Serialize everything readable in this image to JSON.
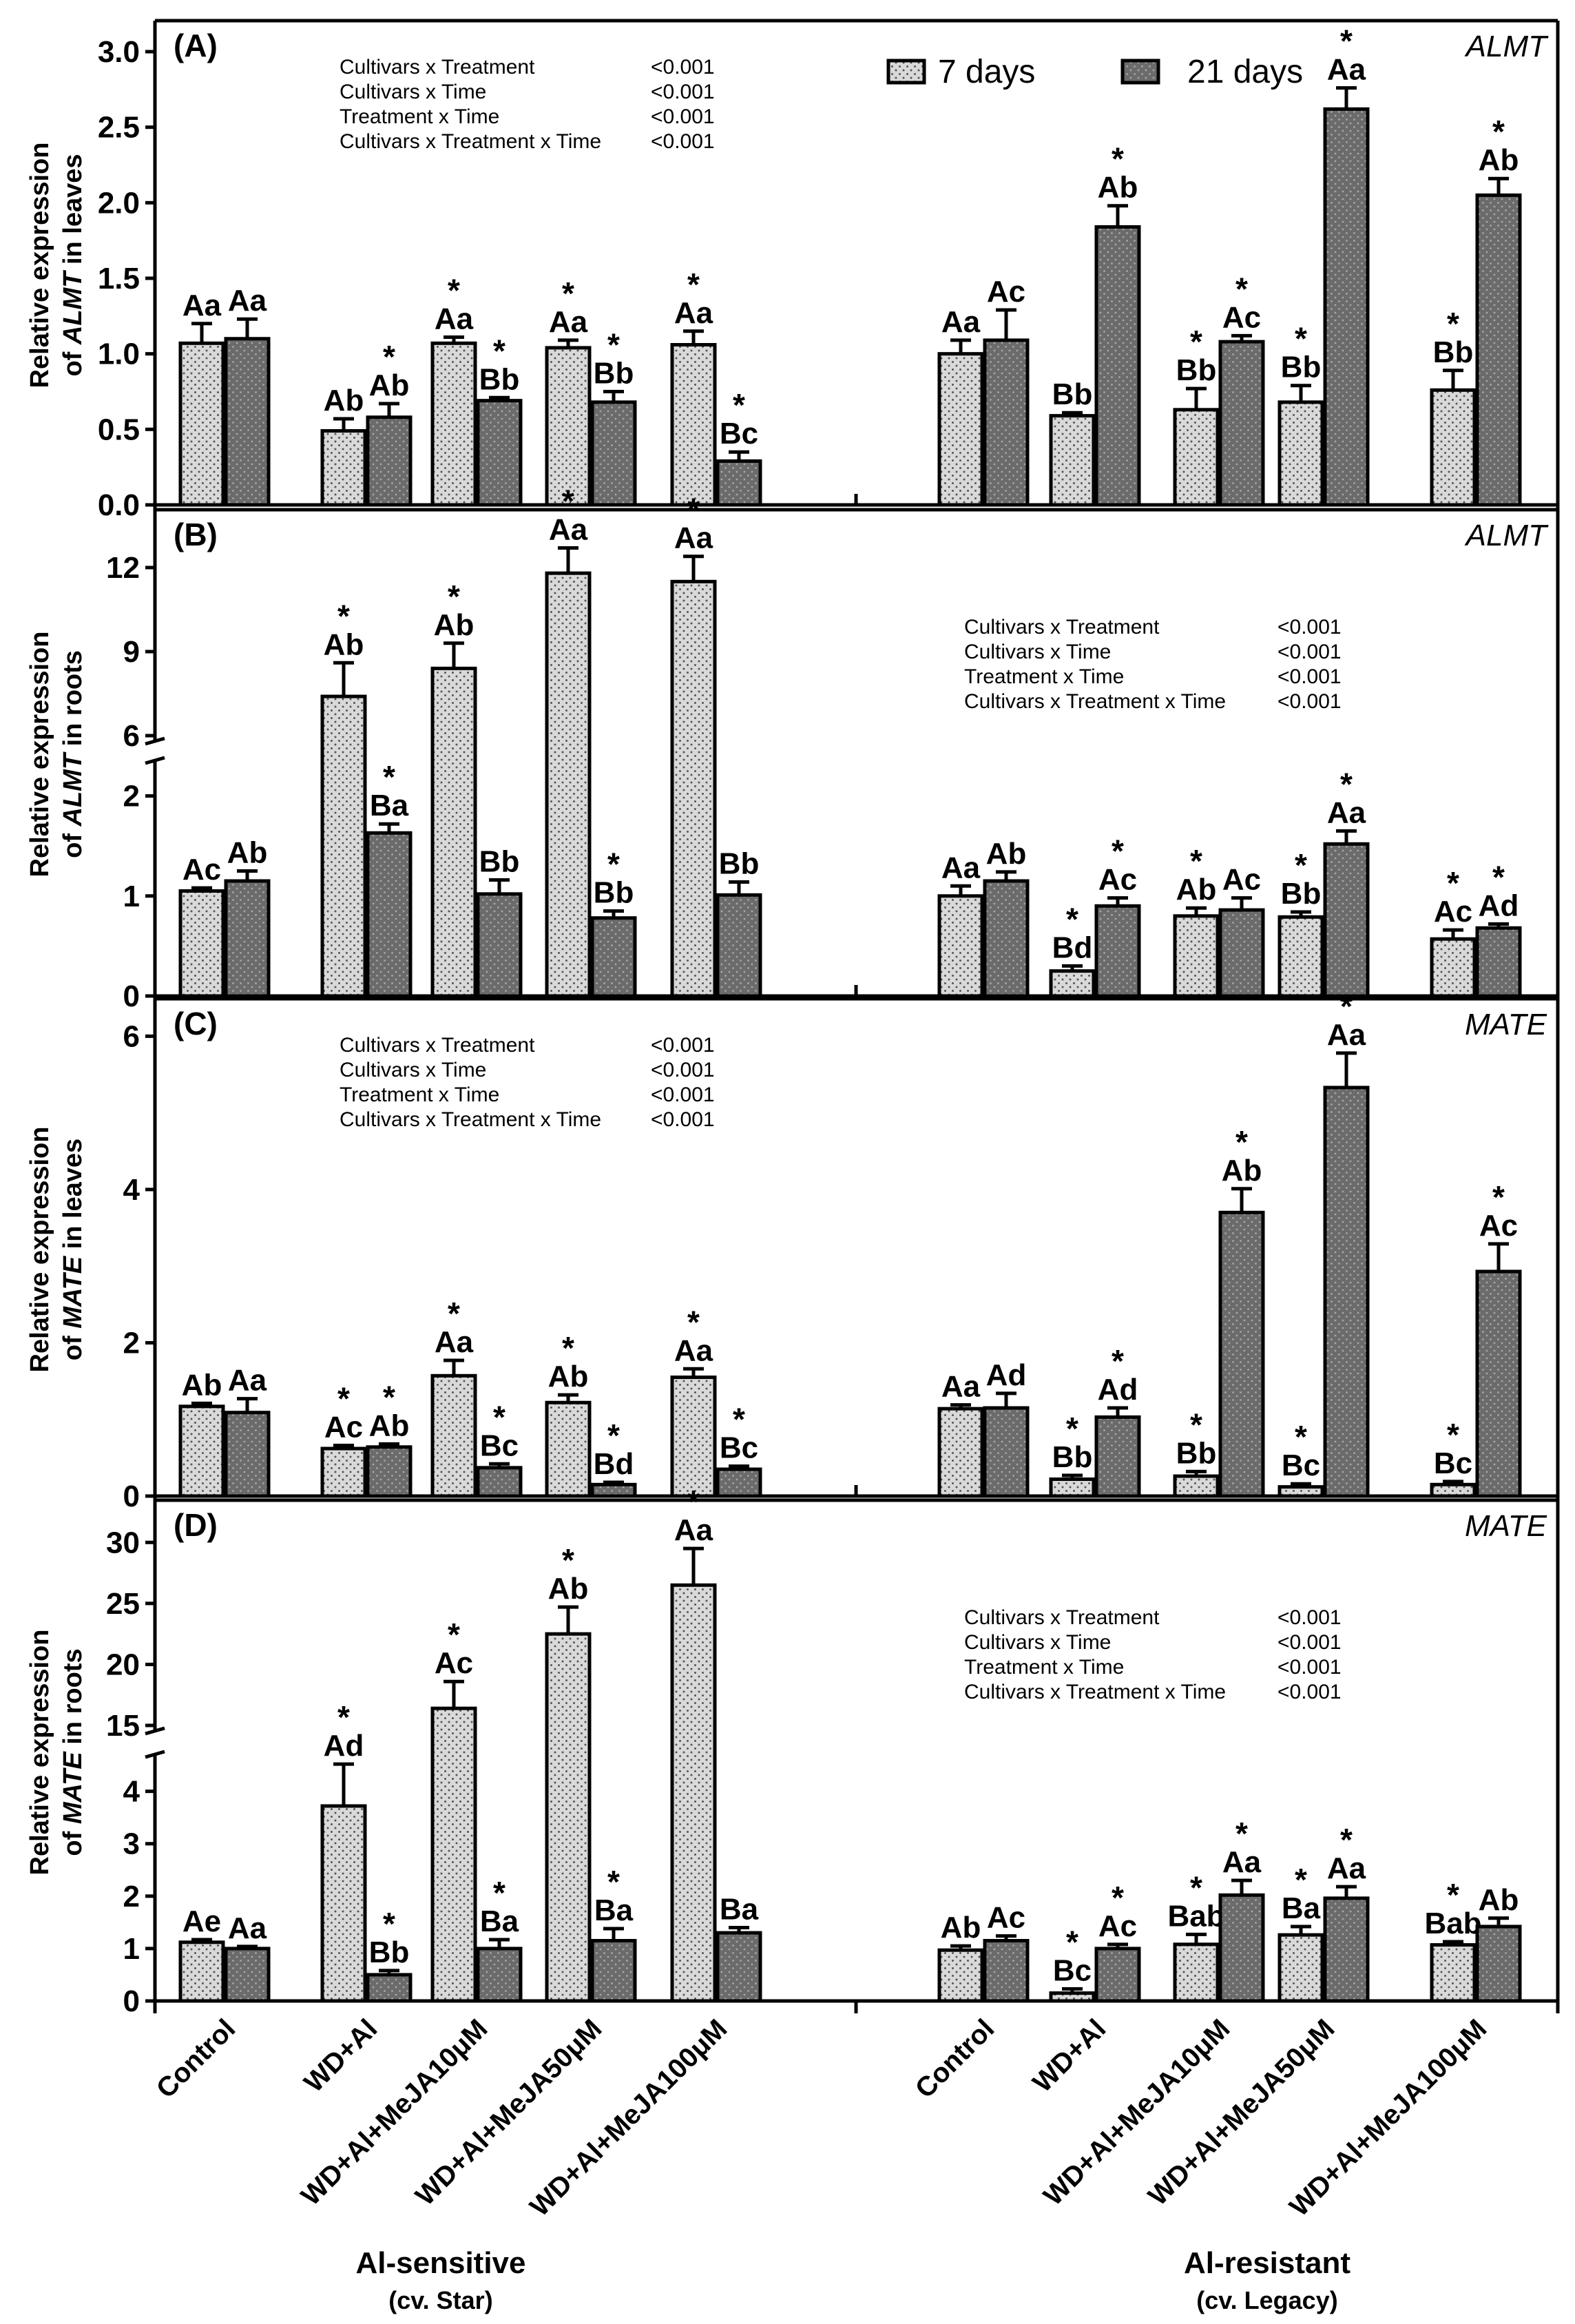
{
  "figure": {
    "legend": [
      {
        "label": "7 days",
        "color": "#d9d9d9",
        "pattern": "dots-dark"
      },
      {
        "label": "21 days",
        "color": "#6b6b6b",
        "pattern": "dots-light"
      }
    ],
    "bar_colors": {
      "day7": "#d9d9d9",
      "day21": "#6b6b6b"
    },
    "categories": [
      "Control",
      "WD+Al",
      "WD+Al+MeJA10μM",
      "WD+Al+MeJA50μM",
      "WD+Al+MeJA100μM"
    ],
    "groups": [
      {
        "title": "Al-sensitive",
        "subtitle": "(cv. Star)"
      },
      {
        "title": "Al-resistant",
        "subtitle": "(cv. Legacy)"
      }
    ]
  },
  "chart_data": [
    {
      "type": "bar",
      "panel": "(A)",
      "gene": "ALMT",
      "ylabel_line1": "Relative expression",
      "ylabel_pre": "of ",
      "ylabel_gene": "ALMT",
      "ylabel_post": " in leaves",
      "ylim": [
        0,
        3.0
      ],
      "yticks": [
        "0.0",
        "0.5",
        "1.0",
        "1.5",
        "2.0",
        "2.5",
        "3.0"
      ],
      "stats": [
        {
          "label": "Cultivars x Treatment",
          "p": "<0.001"
        },
        {
          "label": "Cultivars x Time",
          "p": "<0.001"
        },
        {
          "label": "Treatment x Time",
          "p": "<0.001"
        },
        {
          "label": "Cultivars x Treatment x Time",
          "p": "<0.001"
        }
      ],
      "stats_position": "top-left",
      "series": [
        {
          "name": "7 days",
          "values": [
            1.07,
            0.49,
            1.07,
            1.04,
            1.06,
            1.0,
            0.59,
            0.63,
            0.68,
            0.76
          ],
          "errors": [
            0.13,
            0.08,
            0.04,
            0.05,
            0.09,
            0.09,
            0.02,
            0.14,
            0.11,
            0.13
          ],
          "labels": [
            "Aa",
            "Ab",
            "Aa",
            "Aa",
            "Aa",
            "Aa",
            "Bb",
            "Bb",
            "Bb",
            "Bb"
          ],
          "sig": [
            false,
            false,
            true,
            true,
            true,
            false,
            false,
            true,
            true,
            true
          ]
        },
        {
          "name": "21 days",
          "values": [
            1.1,
            0.58,
            0.69,
            0.68,
            0.29,
            1.09,
            1.84,
            1.08,
            2.62,
            2.05
          ],
          "errors": [
            0.13,
            0.09,
            0.02,
            0.07,
            0.06,
            0.2,
            0.14,
            0.04,
            0.14,
            0.11
          ],
          "labels": [
            "Aa",
            "Ab",
            "Bb",
            "Bb",
            "Bc",
            "Ac",
            "Ab",
            "Ac",
            "Aa",
            "Ab"
          ],
          "sig": [
            false,
            true,
            true,
            true,
            true,
            false,
            true,
            true,
            true,
            true
          ]
        }
      ]
    },
    {
      "type": "bar",
      "panel": "(B)",
      "gene": "ALMT",
      "ylabel_line1": "Relative expression",
      "ylabel_pre": "of ",
      "ylabel_gene": "ALMT",
      "ylabel_post": " in roots",
      "broken_axis": {
        "lower": [
          0,
          2.3
        ],
        "upper": [
          6,
          13.5
        ]
      },
      "yticks_lower": [
        "0",
        "1",
        "2"
      ],
      "yticks_upper": [
        "6",
        "9",
        "12"
      ],
      "stats": [
        {
          "label": "Cultivars x Treatment",
          "p": "<0.001"
        },
        {
          "label": "Cultivars x Time",
          "p": "<0.001"
        },
        {
          "label": "Treatment x Time",
          "p": "<0.001"
        },
        {
          "label": "Cultivars x Treatment x Time",
          "p": "<0.001"
        }
      ],
      "stats_position": "top-right",
      "series": [
        {
          "name": "7 days",
          "values": [
            1.05,
            7.4,
            8.4,
            11.8,
            11.5,
            1.0,
            0.25,
            0.8,
            0.79,
            0.57
          ],
          "errors": [
            0.03,
            1.2,
            0.9,
            0.9,
            0.9,
            0.1,
            0.05,
            0.08,
            0.05,
            0.09
          ],
          "labels": [
            "Ac",
            "Ab",
            "Ab",
            "Aa",
            "Aa",
            "Aa",
            "Bd",
            "Ab",
            "Bb",
            "Ac"
          ],
          "sig": [
            false,
            true,
            true,
            true,
            true,
            false,
            true,
            true,
            true,
            true
          ]
        },
        {
          "name": "21 days",
          "values": [
            1.15,
            1.63,
            1.02,
            0.78,
            1.01,
            1.15,
            0.9,
            0.86,
            1.52,
            0.68
          ],
          "errors": [
            0.1,
            0.09,
            0.14,
            0.07,
            0.13,
            0.09,
            0.08,
            0.12,
            0.13,
            0.04
          ],
          "labels": [
            "Ab",
            "Ba",
            "Bb",
            "Bb",
            "Bb",
            "Ab",
            "Ac",
            "Ac",
            "Aa",
            "Ad"
          ],
          "sig": [
            false,
            true,
            false,
            true,
            false,
            false,
            true,
            false,
            true,
            true
          ]
        }
      ]
    },
    {
      "type": "bar",
      "panel": "(C)",
      "gene": "MATE",
      "ylabel_line1": "Relative expression",
      "ylabel_pre": "of ",
      "ylabel_gene": "MATE",
      "ylabel_post": " in leaves",
      "ylim": [
        0,
        6.3
      ],
      "yticks": [
        "0",
        "2",
        "4",
        "6"
      ],
      "stats": [
        {
          "label": "Cultivars x Treatment",
          "p": "<0.001"
        },
        {
          "label": "Cultivars x Time",
          "p": "<0.001"
        },
        {
          "label": "Treatment x Time",
          "p": "<0.001"
        },
        {
          "label": "Cultivars x Treatment x Time",
          "p": "<0.001"
        }
      ],
      "stats_position": "top-left",
      "series": [
        {
          "name": "7 days",
          "values": [
            1.17,
            0.62,
            1.57,
            1.22,
            1.55,
            1.14,
            0.22,
            0.26,
            0.12,
            0.15
          ],
          "errors": [
            0.04,
            0.04,
            0.2,
            0.1,
            0.11,
            0.05,
            0.05,
            0.06,
            0.04,
            0.04
          ],
          "labels": [
            "Ab",
            "Ac",
            "Aa",
            "Ab",
            "Aa",
            "Aa",
            "Bb",
            "Bb",
            "Bc",
            "Bc"
          ],
          "sig": [
            false,
            true,
            true,
            true,
            true,
            false,
            true,
            true,
            true,
            true
          ]
        },
        {
          "name": "21 days",
          "values": [
            1.09,
            0.64,
            0.37,
            0.15,
            0.35,
            1.15,
            1.03,
            3.7,
            5.33,
            2.93
          ],
          "errors": [
            0.18,
            0.04,
            0.05,
            0.03,
            0.04,
            0.19,
            0.12,
            0.31,
            0.45,
            0.36
          ],
          "labels": [
            "Aa",
            "Ab",
            "Bc",
            "Bd",
            "Bc",
            "Ad",
            "Ad",
            "Ab",
            "Aa",
            "Ac"
          ],
          "sig": [
            false,
            true,
            true,
            true,
            true,
            false,
            true,
            true,
            true,
            true
          ]
        }
      ]
    },
    {
      "type": "bar",
      "panel": "(D)",
      "gene": "MATE",
      "ylabel_line1": "Relative expression",
      "ylabel_pre": "of ",
      "ylabel_gene": "MATE",
      "ylabel_post": " in roots",
      "broken_axis": {
        "lower": [
          0,
          4.6
        ],
        "upper": [
          15,
          32.5
        ]
      },
      "yticks_lower": [
        "0",
        "1",
        "2",
        "3",
        "4"
      ],
      "yticks_upper": [
        "15",
        "20",
        "25",
        "30"
      ],
      "stats": [
        {
          "label": "Cultivars x Treatment",
          "p": "<0.001"
        },
        {
          "label": "Cultivars x Time",
          "p": "<0.001"
        },
        {
          "label": "Treatment x Time",
          "p": "<0.001"
        },
        {
          "label": "Cultivars x Treatment x Time",
          "p": "<0.001"
        }
      ],
      "stats_position": "top-right",
      "series": [
        {
          "name": "7 days",
          "values": [
            1.12,
            3.72,
            16.4,
            22.5,
            26.5,
            0.97,
            0.15,
            1.08,
            1.26,
            1.07
          ],
          "errors": [
            0.05,
            0.8,
            2.2,
            2.2,
            3.0,
            0.08,
            0.08,
            0.19,
            0.16,
            0.06
          ],
          "labels": [
            "Ae",
            "Ad",
            "Ac",
            "Ab",
            "Aa",
            "Ab",
            "Bc",
            "Bab",
            "Ba",
            "Bab"
          ],
          "sig": [
            false,
            true,
            true,
            true,
            true,
            false,
            true,
            true,
            true,
            true
          ]
        },
        {
          "name": "21 days",
          "values": [
            1.0,
            0.5,
            1.0,
            1.15,
            1.3,
            1.15,
            1.0,
            2.02,
            1.96,
            1.42
          ],
          "errors": [
            0.04,
            0.08,
            0.17,
            0.23,
            0.1,
            0.09,
            0.08,
            0.28,
            0.22,
            0.16
          ],
          "labels": [
            "Aa",
            "Bb",
            "Ba",
            "Ba",
            "Ba",
            "Ac",
            "Ac",
            "Aa",
            "Aa",
            "Ab"
          ],
          "sig": [
            false,
            true,
            true,
            true,
            false,
            false,
            true,
            true,
            true,
            false
          ]
        }
      ]
    }
  ]
}
